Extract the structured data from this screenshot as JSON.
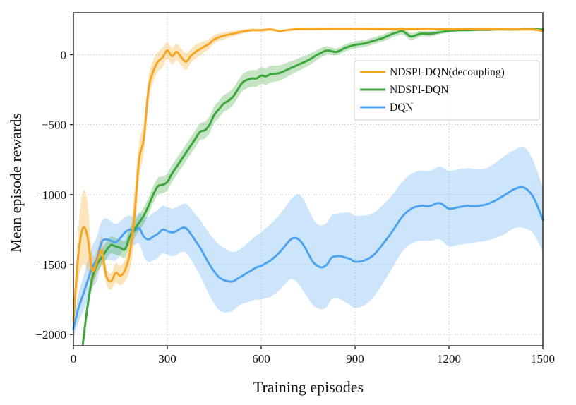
{
  "chart_data": {
    "type": "line",
    "title": "",
    "xlabel": "Training episodes",
    "ylabel": "Mean episode rewards",
    "xlim": [
      0,
      1500
    ],
    "ylim": [
      -2080,
      300
    ],
    "xticks": [
      0,
      300,
      600,
      900,
      1200,
      1500
    ],
    "yticks": [
      -2000,
      -1500,
      -1000,
      -500,
      0
    ],
    "grid": true,
    "legend_position": "upper-right",
    "series": [
      {
        "name": "NDSPI-DQN(decoupling)",
        "color": "#f5a623",
        "x": [
          0,
          15,
          30,
          45,
          60,
          75,
          90,
          105,
          120,
          135,
          150,
          165,
          180,
          195,
          210,
          225,
          240,
          255,
          270,
          285,
          300,
          315,
          330,
          345,
          360,
          375,
          390,
          405,
          420,
          435,
          450,
          480,
          510,
          540,
          570,
          600,
          630,
          660,
          690,
          720,
          780,
          840,
          900,
          960,
          1020,
          1080,
          1140,
          1200,
          1260,
          1320,
          1380,
          1440,
          1470,
          1500
        ],
        "y": [
          -1900,
          -1450,
          -1240,
          -1300,
          -1540,
          -1480,
          -1400,
          -1580,
          -1620,
          -1560,
          -1580,
          -1540,
          -1420,
          -1150,
          -750,
          -600,
          -250,
          -120,
          -50,
          -20,
          30,
          -10,
          20,
          -20,
          -50,
          -10,
          20,
          40,
          60,
          80,
          110,
          135,
          150,
          165,
          175,
          175,
          180,
          170,
          178,
          182,
          183,
          184,
          184,
          183,
          182,
          182,
          182,
          181,
          182,
          182,
          181,
          180,
          180,
          170
        ],
        "band": [
          100,
          180,
          260,
          240,
          120,
          80,
          100,
          60,
          60,
          70,
          70,
          80,
          120,
          170,
          130,
          110,
          90,
          80,
          70,
          70,
          60,
          60,
          60,
          60,
          60,
          50,
          50,
          45,
          40,
          35,
          30,
          25,
          20,
          15,
          12,
          10,
          8,
          8,
          6,
          5,
          5,
          5,
          5,
          5,
          5,
          5,
          5,
          5,
          5,
          5,
          5,
          5,
          5,
          5
        ]
      },
      {
        "name": "NDSPI-DQN",
        "color": "#3da73d",
        "x": [
          30,
          45,
          60,
          75,
          90,
          105,
          120,
          135,
          150,
          165,
          180,
          195,
          210,
          225,
          240,
          255,
          270,
          285,
          300,
          315,
          330,
          345,
          360,
          375,
          390,
          405,
          420,
          435,
          450,
          465,
          480,
          495,
          510,
          525,
          540,
          555,
          570,
          585,
          600,
          615,
          630,
          660,
          690,
          720,
          750,
          780,
          810,
          840,
          870,
          900,
          930,
          960,
          990,
          1020,
          1035,
          1050,
          1065,
          1080,
          1110,
          1140,
          1170,
          1200,
          1230,
          1260,
          1290,
          1320,
          1350,
          1380,
          1410,
          1440,
          1470,
          1500
        ],
        "y": [
          -2070,
          -1800,
          -1600,
          -1500,
          -1450,
          -1400,
          -1360,
          -1370,
          -1380,
          -1390,
          -1300,
          -1250,
          -1200,
          -1150,
          -1080,
          -1000,
          -940,
          -930,
          -910,
          -850,
          -800,
          -750,
          -700,
          -650,
          -600,
          -550,
          -540,
          -500,
          -430,
          -390,
          -350,
          -330,
          -300,
          -250,
          -200,
          -180,
          -170,
          -170,
          -150,
          -155,
          -140,
          -130,
          -100,
          -70,
          -40,
          0,
          30,
          20,
          50,
          70,
          80,
          100,
          120,
          150,
          160,
          170,
          150,
          130,
          150,
          150,
          160,
          170,
          175,
          175,
          178,
          178,
          180,
          180,
          180,
          182,
          182,
          180
        ],
        "band": [
          60,
          60,
          60,
          60,
          60,
          60,
          60,
          60,
          60,
          60,
          60,
          60,
          60,
          60,
          60,
          60,
          60,
          60,
          60,
          60,
          60,
          60,
          60,
          60,
          60,
          60,
          60,
          60,
          60,
          60,
          60,
          60,
          60,
          60,
          60,
          60,
          60,
          60,
          60,
          60,
          60,
          55,
          50,
          45,
          40,
          35,
          30,
          25,
          25,
          25,
          25,
          25,
          25,
          25,
          25,
          25,
          25,
          25,
          20,
          20,
          15,
          12,
          10,
          8,
          8,
          8,
          6,
          6,
          6,
          6,
          6,
          6
        ]
      },
      {
        "name": "DQN",
        "color": "#4da3f0",
        "x": [
          0,
          15,
          30,
          45,
          60,
          75,
          90,
          105,
          120,
          135,
          150,
          165,
          180,
          195,
          210,
          225,
          240,
          255,
          270,
          285,
          300,
          315,
          330,
          345,
          360,
          375,
          390,
          405,
          420,
          435,
          450,
          465,
          480,
          495,
          510,
          525,
          540,
          555,
          570,
          585,
          600,
          615,
          630,
          660,
          690,
          705,
          720,
          735,
          750,
          765,
          780,
          795,
          810,
          825,
          840,
          855,
          870,
          885,
          900,
          930,
          960,
          990,
          1020,
          1050,
          1080,
          1110,
          1140,
          1170,
          1200,
          1230,
          1260,
          1290,
          1320,
          1350,
          1380,
          1410,
          1440,
          1470,
          1500
        ],
        "y": [
          -1960,
          -1820,
          -1720,
          -1620,
          -1520,
          -1460,
          -1340,
          -1320,
          -1330,
          -1340,
          -1310,
          -1270,
          -1250,
          -1260,
          -1240,
          -1300,
          -1320,
          -1300,
          -1280,
          -1250,
          -1260,
          -1270,
          -1260,
          -1240,
          -1240,
          -1280,
          -1330,
          -1380,
          -1440,
          -1500,
          -1550,
          -1590,
          -1610,
          -1620,
          -1620,
          -1600,
          -1580,
          -1560,
          -1540,
          -1520,
          -1510,
          -1490,
          -1470,
          -1410,
          -1330,
          -1310,
          -1320,
          -1360,
          -1420,
          -1480,
          -1510,
          -1520,
          -1500,
          -1450,
          -1440,
          -1440,
          -1450,
          -1460,
          -1480,
          -1470,
          -1430,
          -1350,
          -1260,
          -1160,
          -1100,
          -1080,
          -1080,
          -1060,
          -1100,
          -1090,
          -1080,
          -1080,
          -1070,
          -1040,
          -1000,
          -960,
          -950,
          -1020,
          -1180
        ],
        "band": [
          80,
          100,
          120,
          140,
          150,
          160,
          150,
          150,
          140,
          130,
          120,
          110,
          100,
          100,
          110,
          140,
          160,
          170,
          170,
          170,
          170,
          170,
          170,
          170,
          175,
          180,
          190,
          200,
          210,
          220,
          230,
          235,
          230,
          220,
          210,
          200,
          200,
          210,
          220,
          230,
          240,
          250,
          260,
          270,
          280,
          300,
          320,
          330,
          320,
          310,
          300,
          300,
          300,
          300,
          300,
          310,
          320,
          330,
          330,
          320,
          300,
          280,
          260,
          250,
          250,
          250,
          250,
          260,
          270,
          270,
          270,
          260,
          260,
          270,
          280,
          280,
          290,
          260,
          230
        ]
      }
    ]
  }
}
